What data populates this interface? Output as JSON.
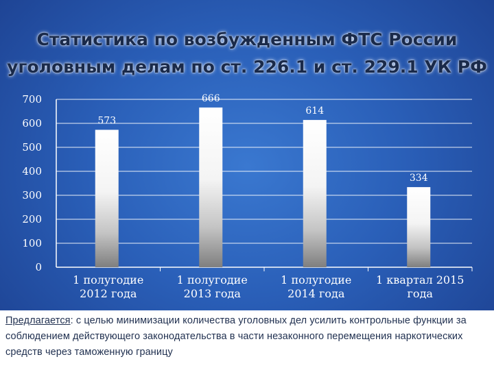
{
  "title": {
    "line1": "Статистика по возбужденным ФТС России",
    "line2": "уголовным делам по ст. 226.1 и ст. 229.1 УК РФ"
  },
  "chart_data": {
    "type": "bar",
    "title": "Статистика по возбужденным ФТС России уголовным делам по ст. 226.1 и ст. 229.1 УК РФ",
    "categories": [
      [
        "1 полугодие",
        "2012 года"
      ],
      [
        "1 полугодие",
        "2013 года"
      ],
      [
        "1 полугодие",
        "2014 года"
      ],
      [
        "1 квартал 2015",
        "года"
      ]
    ],
    "values": [
      573,
      666,
      614,
      334
    ],
    "ylim": [
      0,
      700
    ],
    "yticks": [
      0,
      100,
      200,
      300,
      400,
      500,
      600,
      700
    ],
    "grid": true,
    "legend": "none",
    "xlabel": "",
    "ylabel": ""
  },
  "note": {
    "label": "Предлагается",
    "text": ": с целью минимизации количества уголовных дел усилить контрольные функции за соблюдением действующего законодательства в части незаконного перемещения наркотических средств через таможенную границу"
  },
  "colors": {
    "background": "#2a5fb8",
    "bar_top": "#ffffff",
    "bar_bottom": "#7f7f7f",
    "grid": "#ffffff",
    "title_text": "#1a2a4a",
    "note_text": "#1f2f4f"
  }
}
